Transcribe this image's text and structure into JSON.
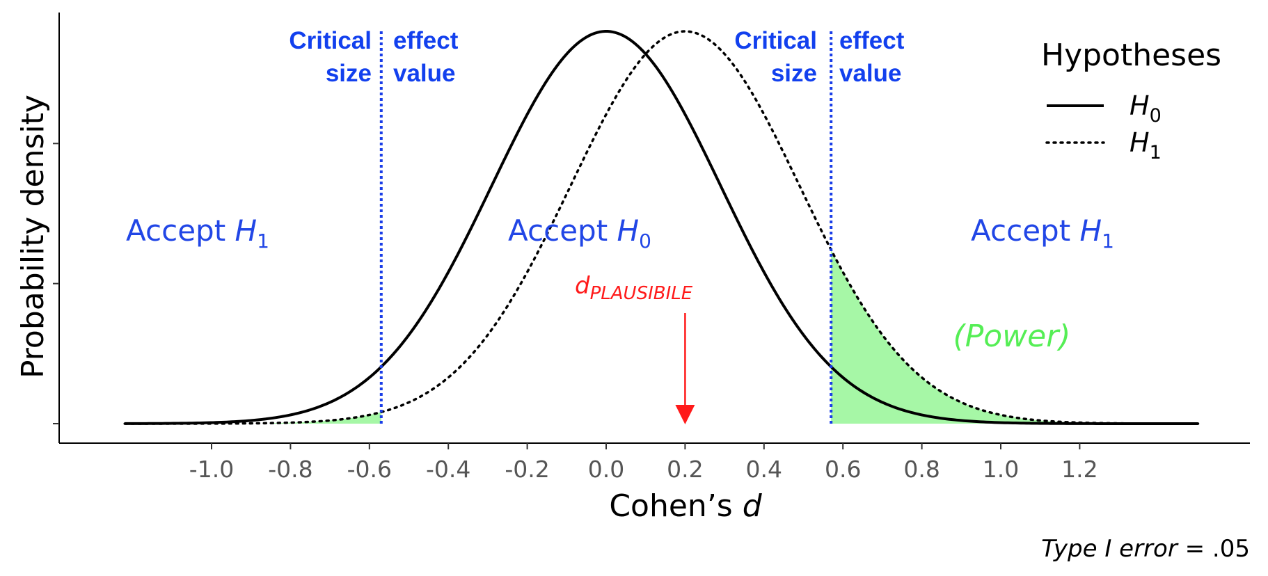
{
  "chart_data": {
    "type": "line",
    "x_axis": {
      "label": "Cohen’s",
      "label_variable": "d",
      "ticks": [
        -1.0,
        -0.8,
        -0.6,
        -0.4,
        -0.2,
        0.0,
        0.2,
        0.4,
        0.6,
        0.8,
        1.0,
        1.2
      ],
      "tick_labels": [
        "-1.0",
        "-0.8",
        "-0.6",
        "-0.4",
        "-0.2",
        "0.0",
        "0.2",
        "0.4",
        "0.6",
        "0.8",
        "1.0",
        "1.2"
      ],
      "range": [
        -1.25,
        1.5
      ]
    },
    "y_axis": {
      "label": "Probability density",
      "tick_labels_shown": false
    },
    "series": [
      {
        "name": "H0",
        "distribution": "normal",
        "mean": 0.0,
        "sd": 0.29,
        "line_style": "solid"
      },
      {
        "name": "H1",
        "distribution": "normal",
        "mean": 0.2,
        "sd": 0.29,
        "line_style": "dotted"
      }
    ],
    "critical_values": [
      -0.57,
      0.57
    ],
    "d_plausible": 0.2,
    "shaded_region": "H1 density beyond critical values",
    "grid": false,
    "legend_position": "top-right",
    "colors": {
      "critical": "#1a3ee8",
      "region_text": "#2146e6",
      "power_fill": "#a6f7a6",
      "power_text": "#55ee55",
      "arrow": "#ff1a1a"
    }
  },
  "legend": {
    "title": "Hypotheses",
    "entries": [
      {
        "symbol": "H",
        "subscript": "0"
      },
      {
        "symbol": "H",
        "subscript": "1"
      }
    ]
  },
  "regions": [
    {
      "text": "Accept ",
      "symbol": "H",
      "subscript": "1"
    },
    {
      "text": "Accept ",
      "symbol": "H",
      "subscript": "0"
    },
    {
      "text": "Accept ",
      "symbol": "H",
      "subscript": "1"
    }
  ],
  "critical_labels": {
    "left_top": "Critical",
    "left_bottom": "size",
    "right_top": "effect",
    "right_bottom": "value"
  },
  "annotations": {
    "d_plausible_main": "d",
    "d_plausible_sub": "PLAUSIBILE",
    "power": "(Power)",
    "caption_italic": "Type I error",
    "caption_rest": " = .05"
  }
}
